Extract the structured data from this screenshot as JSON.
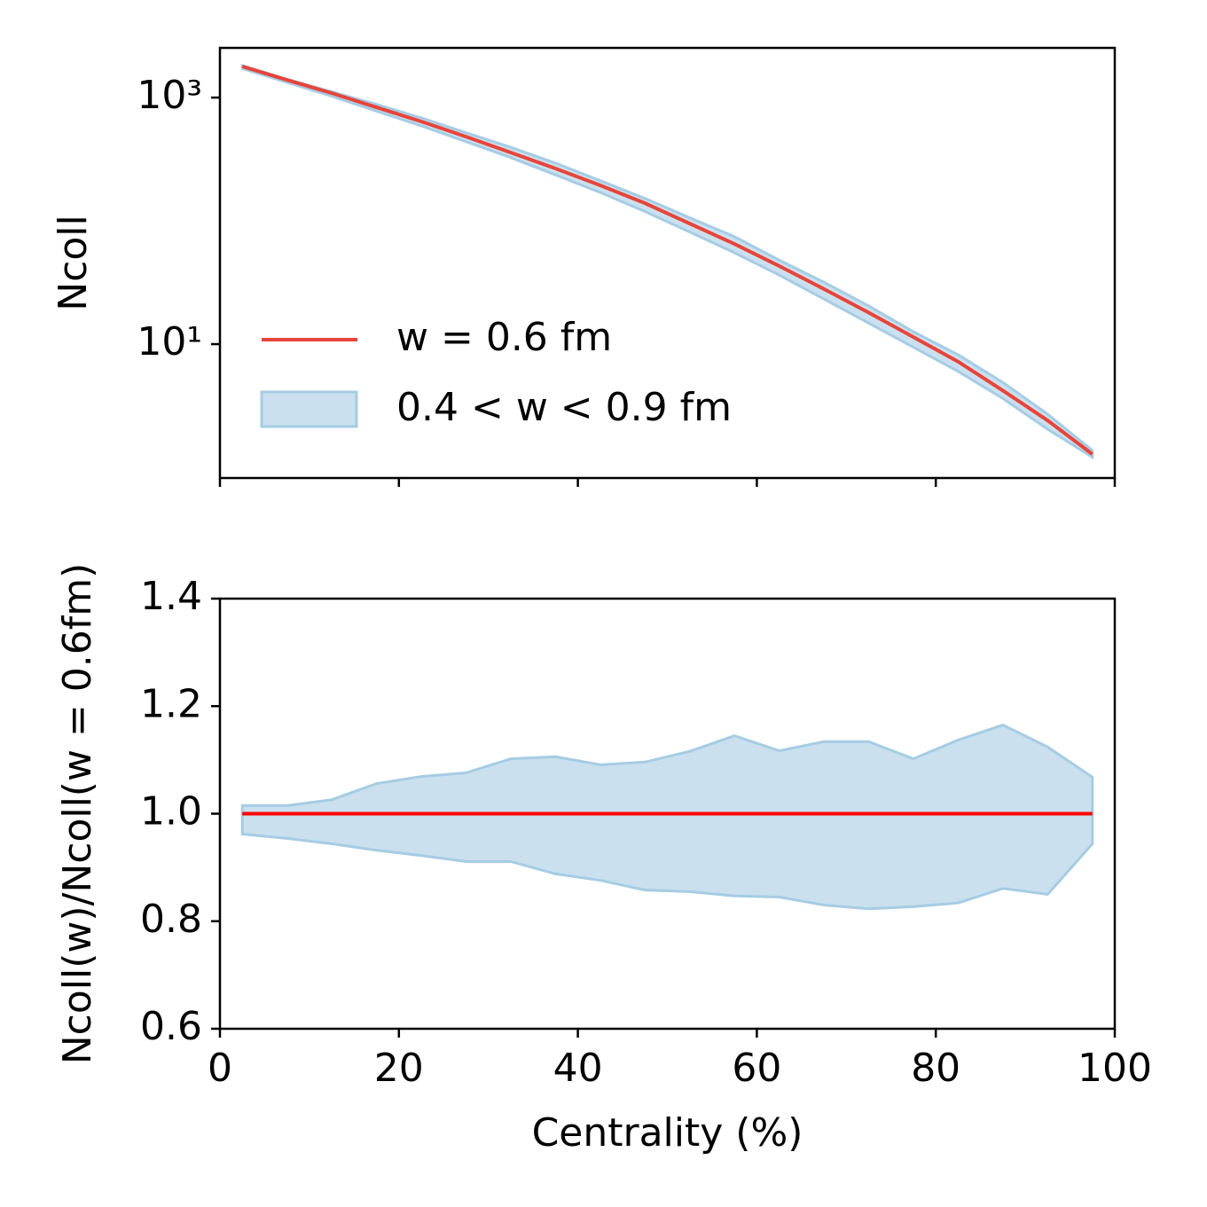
{
  "chart_data": [
    {
      "type": "line",
      "ylabel": "Ncoll",
      "log_y": true,
      "x": [
        2.5,
        7.5,
        12.5,
        17.5,
        22.5,
        27.5,
        32.5,
        37.5,
        42.5,
        47.5,
        52.5,
        57.5,
        62.5,
        67.5,
        72.5,
        77.5,
        82.5,
        87.5,
        92.5,
        97.5
      ],
      "xlim": [
        0,
        100
      ],
      "ylim": [
        0.82,
        2530
      ],
      "yticks": [
        {
          "value": 1000,
          "label": "10³"
        },
        {
          "value": 10,
          "label": "10¹"
        }
      ],
      "legend": "lower left",
      "series": [
        {
          "name": "w = 0.6 fm",
          "color": "#e8443a",
          "values": [
            1790,
            1390,
            1087,
            833,
            640,
            482,
            358,
            266,
            194,
            139,
            95,
            65,
            43,
            28,
            18,
            11.4,
            7.2,
            4.2,
            2.4,
            1.28
          ]
        },
        {
          "name": "0.4 < w < 0.9 fm",
          "color": "#a6cce3",
          "lower": [
            1722,
            1326,
            1026,
            776,
            590,
            439,
            326,
            236,
            170,
            119,
            81.2,
            55.1,
            36.3,
            23.2,
            14.8,
            9.43,
            6.0,
            3.62,
            2.04,
            1.21
          ],
          "upper": [
            1817,
            1411,
            1115,
            880,
            684,
            519,
            395,
            294,
            212,
            152,
            106,
            74.4,
            48.0,
            31.8,
            20.4,
            12.6,
            8.19,
            4.89,
            2.7,
            1.37
          ]
        }
      ]
    },
    {
      "type": "line",
      "xlabel": "Centrality (%)",
      "ylabel": "Ncoll(w)/Ncoll(w = 0.6fm)",
      "x": [
        2.5,
        7.5,
        12.5,
        17.5,
        22.5,
        27.5,
        32.5,
        37.5,
        42.5,
        47.5,
        52.5,
        57.5,
        62.5,
        67.5,
        72.5,
        77.5,
        82.5,
        87.5,
        92.5,
        97.5
      ],
      "xlim": [
        0,
        100
      ],
      "xticks": [
        0,
        20,
        40,
        60,
        80,
        100
      ],
      "ylim": [
        0.6,
        1.4
      ],
      "yticks": [
        {
          "value": 0.6,
          "label": "0.6"
        },
        {
          "value": 0.8,
          "label": "0.8"
        },
        {
          "value": 1.0,
          "label": "1.0"
        },
        {
          "value": 1.2,
          "label": "1.2"
        },
        {
          "value": 1.4,
          "label": "1.4"
        }
      ],
      "series": [
        {
          "color": "#ff0000",
          "values": [
            1,
            1,
            1,
            1,
            1,
            1,
            1,
            1,
            1,
            1,
            1,
            1,
            1,
            1,
            1,
            1,
            1,
            1,
            1,
            1
          ]
        },
        {
          "color": "#a6cce3",
          "lower": [
            0.962,
            0.954,
            0.944,
            0.932,
            0.922,
            0.911,
            0.911,
            0.888,
            0.876,
            0.858,
            0.855,
            0.847,
            0.845,
            0.83,
            0.823,
            0.827,
            0.834,
            0.861,
            0.85,
            0.944
          ],
          "upper": [
            1.015,
            1.015,
            1.026,
            1.056,
            1.069,
            1.076,
            1.102,
            1.106,
            1.091,
            1.096,
            1.116,
            1.145,
            1.117,
            1.134,
            1.134,
            1.102,
            1.137,
            1.165,
            1.124,
            1.068
          ]
        }
      ]
    }
  ]
}
